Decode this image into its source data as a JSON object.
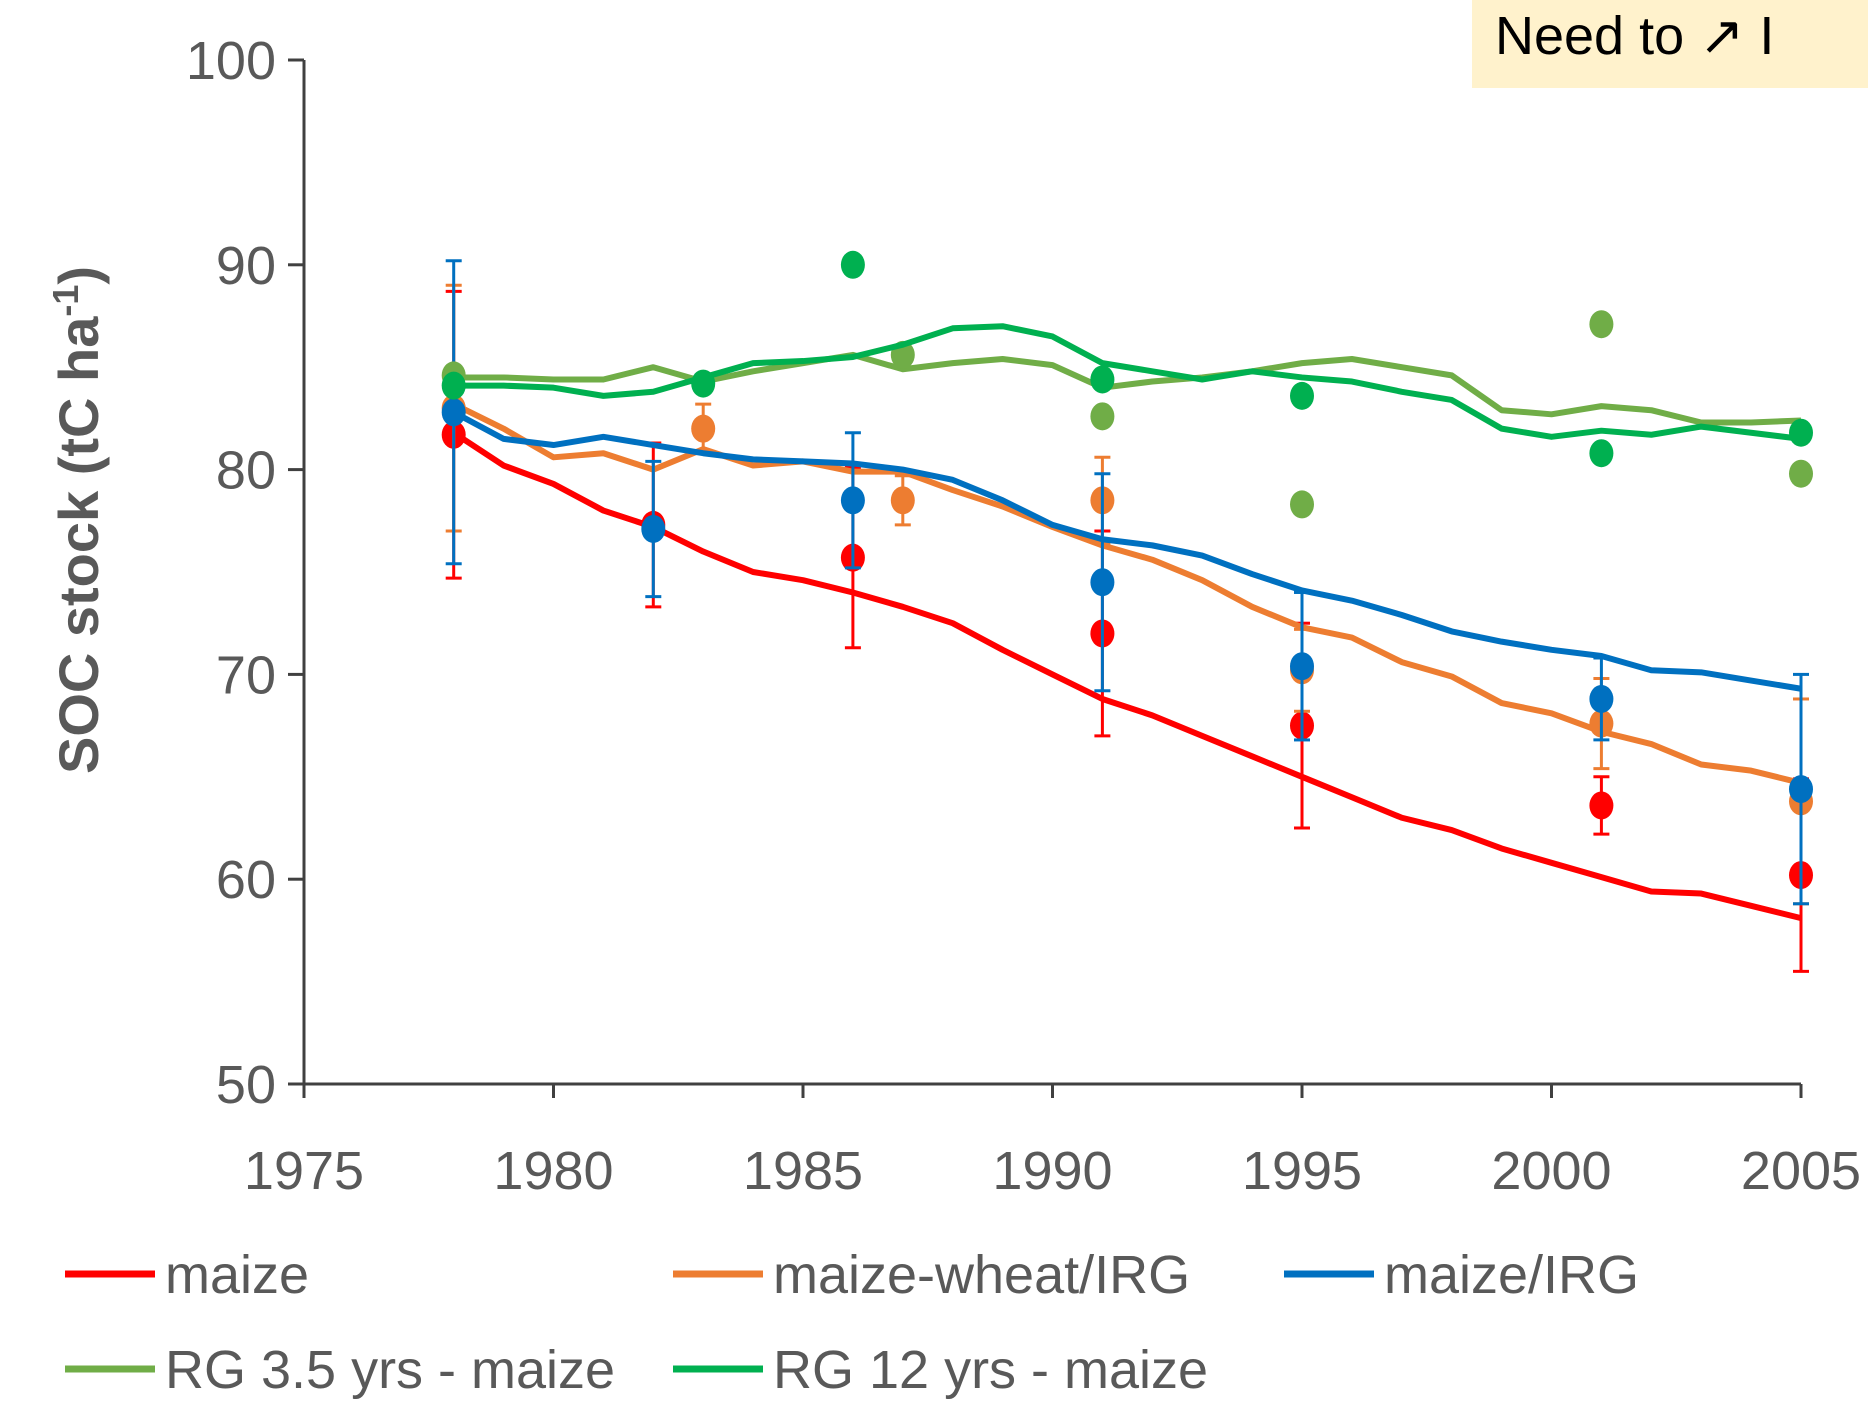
{
  "chart_data": {
    "type": "line",
    "ylabel": {
      "text": "SOC stock (tC ha",
      "sup": "-1",
      "end": ")"
    },
    "annotation": "Need to ↗ I",
    "xlim": [
      1975,
      2005
    ],
    "xticks": [
      1975,
      1980,
      1985,
      1990,
      1995,
      2000,
      2005
    ],
    "ylim": [
      50,
      100
    ],
    "yticks": [
      50,
      60,
      70,
      80,
      90,
      100
    ],
    "x": [
      1978,
      1979,
      1980,
      1981,
      1982,
      1983,
      1984,
      1985,
      1986,
      1987,
      1988,
      1989,
      1990,
      1991,
      1992,
      1993,
      1994,
      1995,
      1996,
      1997,
      1998,
      1999,
      2000,
      2001,
      2002,
      2003,
      2004,
      2005
    ],
    "series": [
      {
        "name": "maize",
        "color": "#ff0000",
        "values": [
          81.8,
          80.2,
          79.3,
          78,
          77.2,
          76,
          75,
          74.6,
          74,
          73.3,
          72.5,
          71.2,
          70,
          68.8,
          68,
          67,
          66,
          65,
          64,
          63,
          62.4,
          61.5,
          60.8,
          60.1,
          59.4,
          59.3,
          58.7,
          58.1
        ],
        "observed": {
          "x": [
            1978,
            1982,
            1986,
            1991,
            1995,
            2001,
            2005
          ],
          "values": [
            81.7,
            77.3,
            75.7,
            72,
            67.5,
            63.6,
            60.2
          ],
          "errors": [
            7,
            4,
            4.4,
            5,
            5,
            1.4,
            4.7
          ]
        }
      },
      {
        "name": "maize-wheat/IRG",
        "color": "#ed7d31",
        "values": [
          83.2,
          82,
          80.6,
          80.8,
          80,
          81,
          80.2,
          80.4,
          79.9,
          79.9,
          79,
          78.2,
          77.2,
          76.3,
          75.6,
          74.6,
          73.3,
          72.3,
          71.8,
          70.6,
          69.9,
          68.6,
          68.1,
          67.2,
          66.6,
          65.6,
          65.3,
          64.7
        ],
        "observed": {
          "x": [
            1978,
            1983,
            1987,
            1991,
            1995,
            2001,
            2005
          ],
          "values": [
            83,
            82,
            78.5,
            78.5,
            70.2,
            67.6,
            63.8
          ],
          "errors": [
            6,
            1.2,
            1.2,
            2.1,
            2,
            2.2,
            5
          ]
        }
      },
      {
        "name": "maize/IRG",
        "color": "#0070c0",
        "values": [
          82.8,
          81.5,
          81.2,
          81.6,
          81.2,
          80.8,
          80.5,
          80.4,
          80.3,
          80,
          79.5,
          78.5,
          77.3,
          76.6,
          76.3,
          75.8,
          74.9,
          74.1,
          73.6,
          72.9,
          72.1,
          71.6,
          71.2,
          70.9,
          70.2,
          70.1,
          69.7,
          69.3
        ],
        "observed": {
          "x": [
            1978,
            1982,
            1986,
            1991,
            1995,
            2001,
            2005
          ],
          "values": [
            82.8,
            77.1,
            78.5,
            74.5,
            70.4,
            68.8,
            64.4
          ],
          "errors": [
            7.4,
            3.3,
            3.3,
            5.3,
            3.6,
            2,
            5.6
          ]
        }
      },
      {
        "name": "RG 3.5 yrs - maize",
        "color": "#70ad47",
        "values": [
          84.5,
          84.5,
          84.4,
          84.4,
          85,
          84.3,
          84.8,
          85.2,
          85.6,
          84.9,
          85.2,
          85.4,
          85.1,
          84,
          84.3,
          84.5,
          84.8,
          85.2,
          85.4,
          85,
          84.6,
          82.9,
          82.7,
          83.1,
          82.9,
          82.3,
          82.3,
          82.4
        ],
        "observed": {
          "x": [
            1978,
            1987,
            1991,
            1995,
            2001,
            2005
          ],
          "values": [
            84.6,
            85.6,
            82.6,
            78.3,
            87.1,
            79.8
          ]
        }
      },
      {
        "name": "RG 12 yrs - maize",
        "color": "#00b050",
        "values": [
          84.1,
          84.1,
          84,
          83.6,
          83.8,
          84.5,
          85.2,
          85.3,
          85.5,
          86.1,
          86.9,
          87,
          86.5,
          85.2,
          84.8,
          84.4,
          84.8,
          84.5,
          84.3,
          83.8,
          83.4,
          82,
          81.6,
          81.9,
          81.7,
          82.1,
          81.8,
          81.5
        ],
        "observed": {
          "x": [
            1978,
            1983,
            1986,
            1991,
            1995,
            2001,
            2005
          ],
          "values": [
            84.1,
            84.2,
            90,
            84.4,
            83.6,
            80.8,
            81.8
          ]
        }
      }
    ]
  }
}
